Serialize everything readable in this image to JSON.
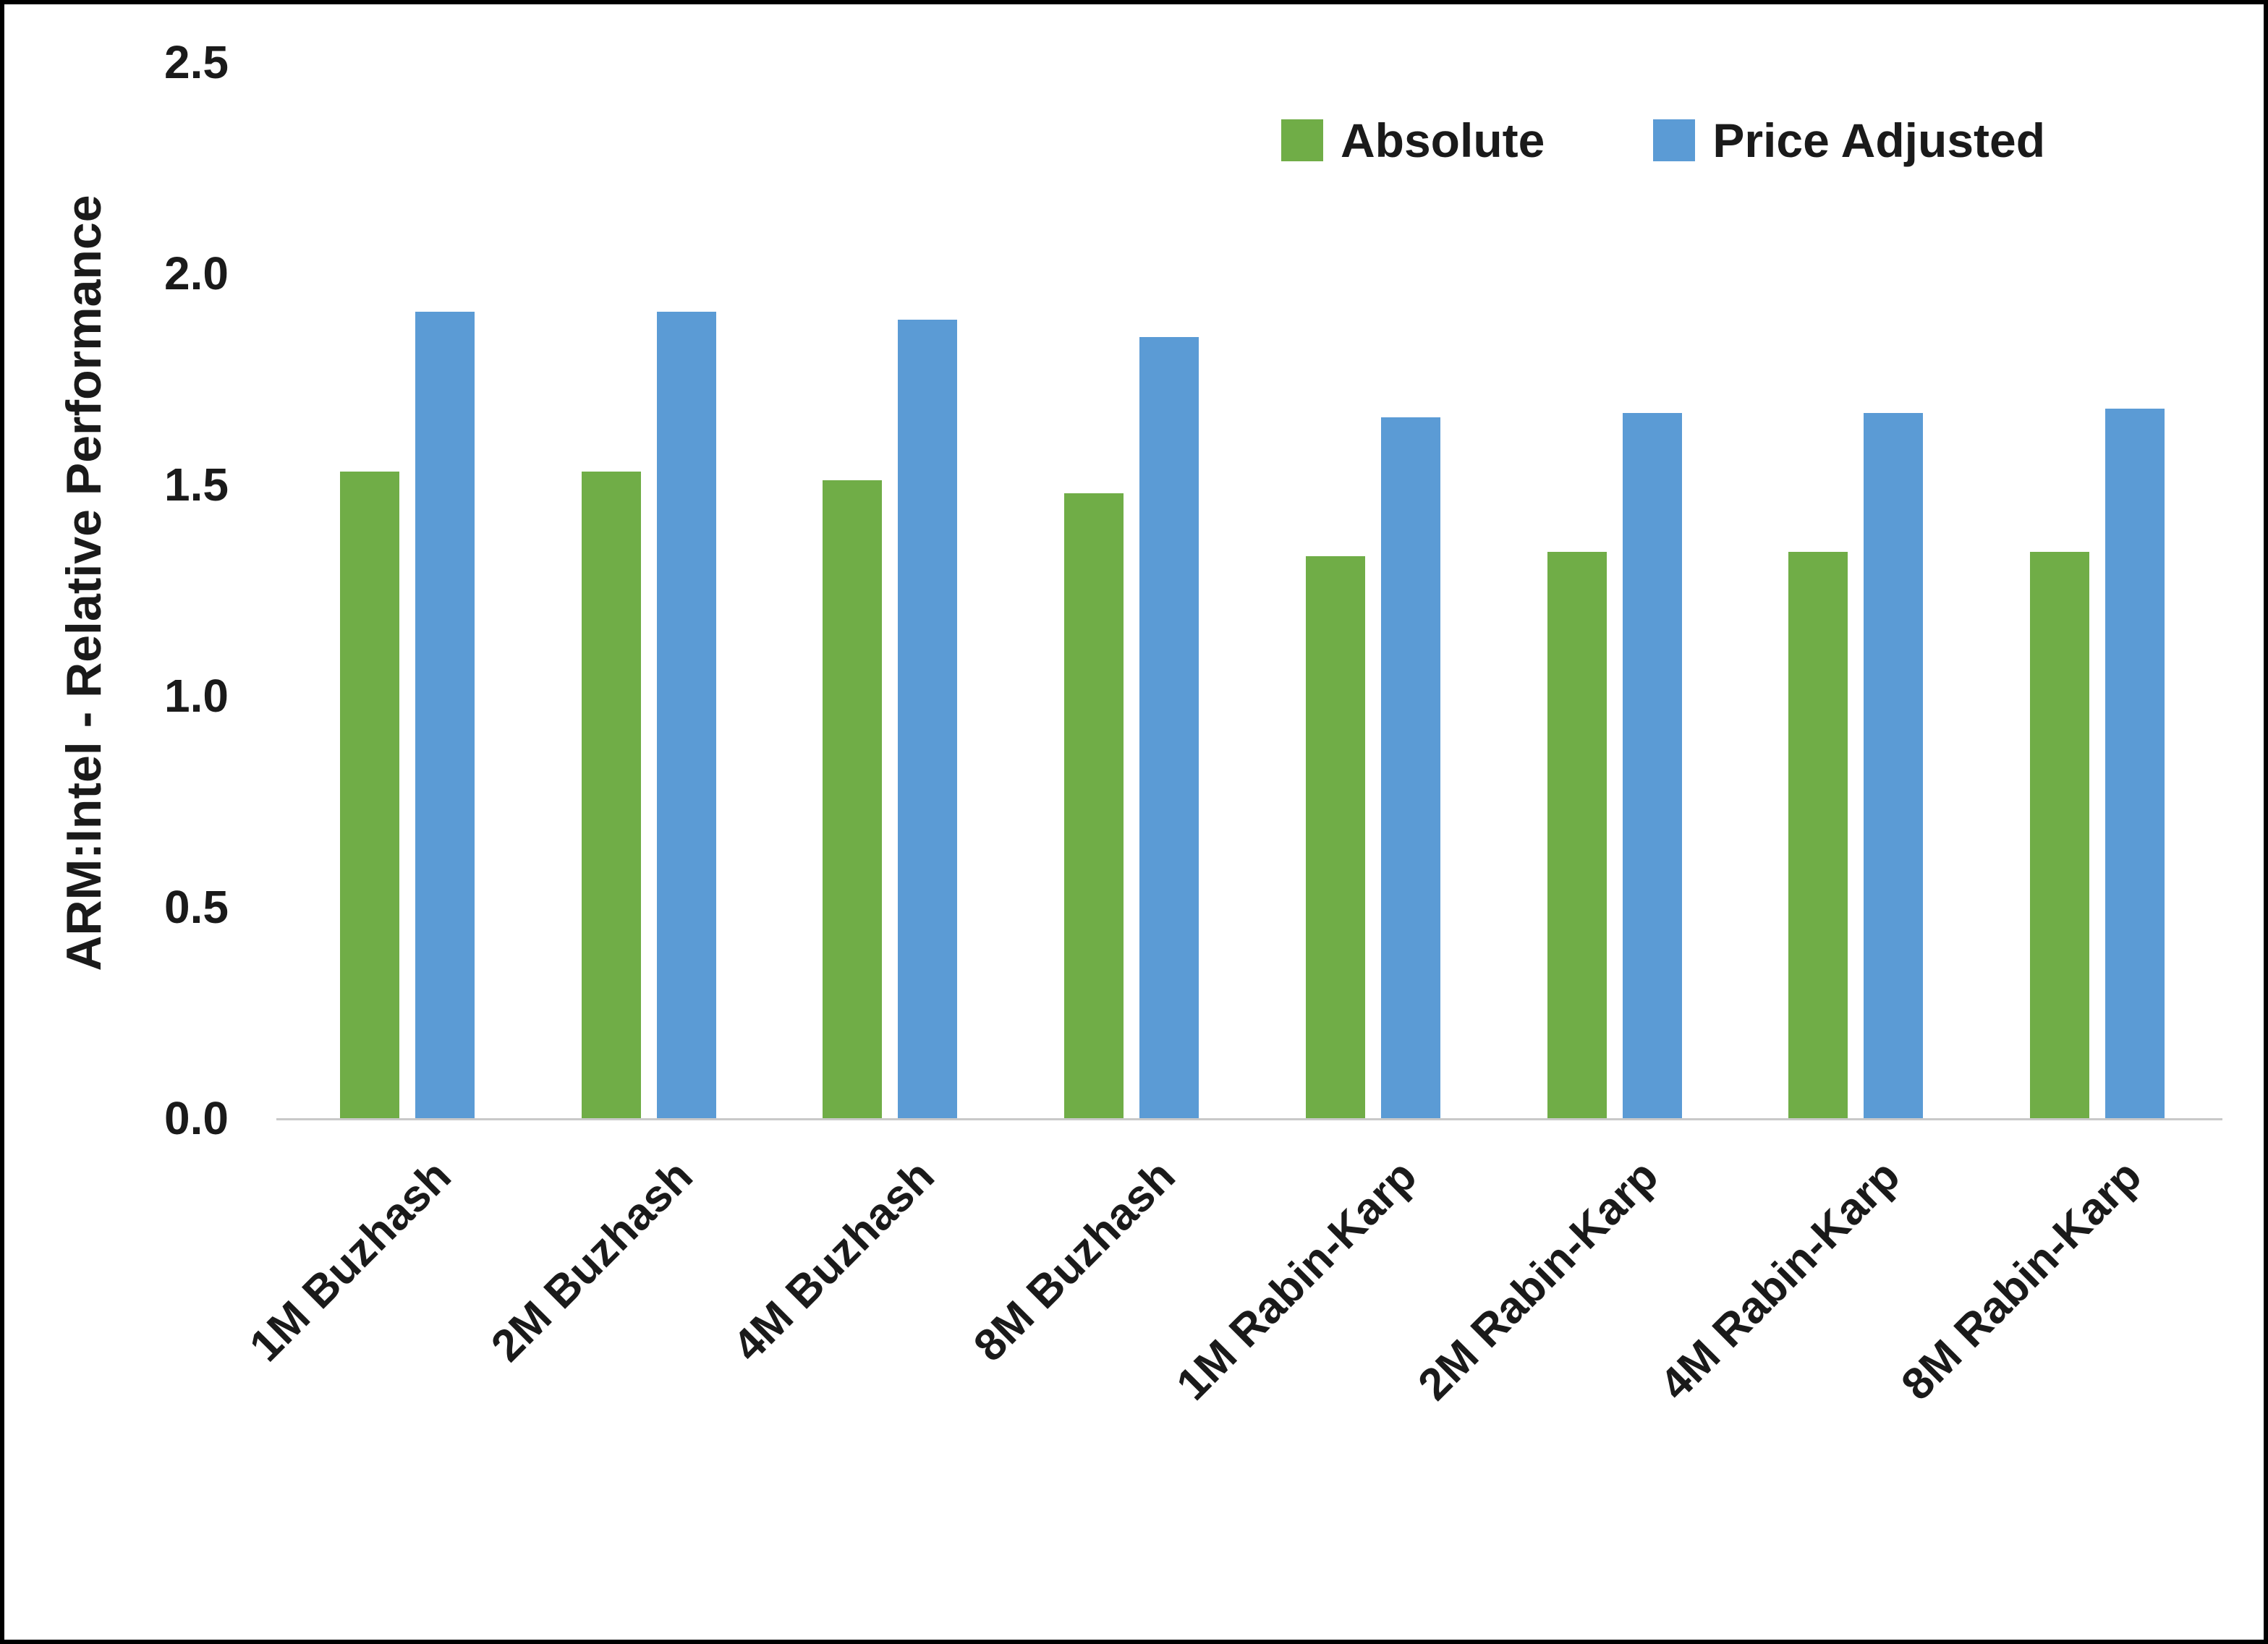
{
  "chart_data": {
    "type": "bar",
    "title": "",
    "xlabel": "",
    "ylabel": "ARM:Intel - Relative Performance",
    "ylim": [
      0,
      2.5
    ],
    "yticks": [
      "0.0",
      "0.5",
      "1.0",
      "1.5",
      "2.0",
      "2.5"
    ],
    "grid": false,
    "legend_position": "top-right",
    "categories": [
      "1M Buzhash",
      "2M Buzhash",
      "4M Buzhash",
      "8M Buzhash",
      "1M Rabin-Karp",
      "2M Rabin-Karp",
      "4M Rabin-Karp",
      "8M Rabin-Karp"
    ],
    "series": [
      {
        "name": "Absolute",
        "color": "#70AD47",
        "values": [
          1.53,
          1.53,
          1.51,
          1.48,
          1.33,
          1.34,
          1.34,
          1.34
        ]
      },
      {
        "name": "Price Adjusted",
        "color": "#5B9BD5",
        "values": [
          1.91,
          1.91,
          1.89,
          1.85,
          1.66,
          1.67,
          1.67,
          1.68
        ]
      }
    ]
  }
}
